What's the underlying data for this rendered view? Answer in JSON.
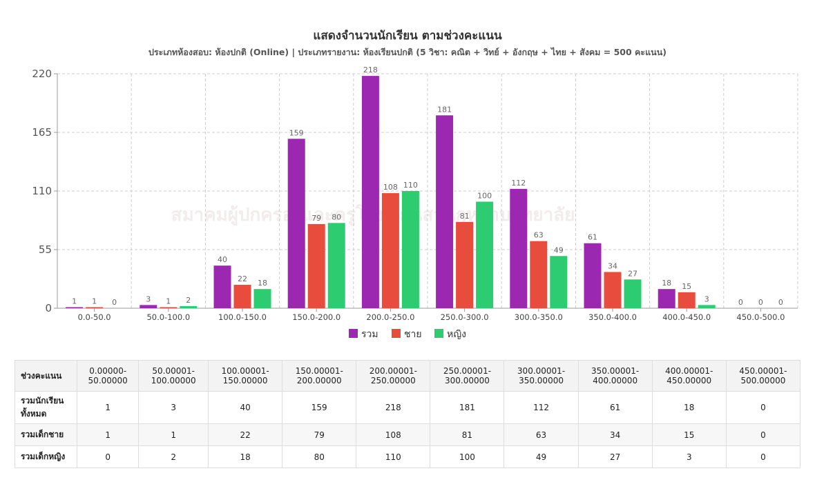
{
  "chart_data": {
    "type": "bar",
    "title": "แสดงจำนวนนักเรียน ตามช่วงคะแนน",
    "subtitle": "ประเภทห้องสอบ: ห้องปกติ (Online) | ประเภทรายงาน: ห้องเรียนปกติ (5 วิชา: คณิต + วิทย์ + อังกฤษ + ไทย + สังคม = 500 คะแนน)",
    "categories": [
      "0.0-50.0",
      "50.0-100.0",
      "100.0-150.0",
      "150.0-200.0",
      "200.0-250.0",
      "250.0-300.0",
      "300.0-350.0",
      "350.0-400.0",
      "400.0-450.0",
      "450.0-500.0"
    ],
    "series": [
      {
        "name": "รวม",
        "color": "#9c27b0",
        "values": [
          1,
          3,
          40,
          159,
          218,
          181,
          112,
          61,
          18,
          0
        ]
      },
      {
        "name": "ชาย",
        "color": "#e74c3c",
        "values": [
          1,
          1,
          22,
          79,
          108,
          81,
          63,
          34,
          15,
          0
        ]
      },
      {
        "name": "หญิง",
        "color": "#2ecc71",
        "values": [
          0,
          2,
          18,
          80,
          110,
          100,
          49,
          27,
          3,
          0
        ]
      }
    ],
    "yticks": [
      0,
      55,
      110,
      165,
      220
    ],
    "ylim": [
      0,
      220
    ],
    "grid": true,
    "legend": "bottom-center",
    "watermark": "สมาคมผู้ปกครองและครูโรงเรียนสวนกุหลาบวิทยาลัย"
  },
  "table": {
    "header_label": "ช่วงคะแนน",
    "ranges": [
      {
        "from": "0.00000-",
        "to": "50.00000"
      },
      {
        "from": "50.00001-",
        "to": "100.00000"
      },
      {
        "from": "100.00001-",
        "to": "150.00000"
      },
      {
        "from": "150.00001-",
        "to": "200.00000"
      },
      {
        "from": "200.00001-",
        "to": "250.00000"
      },
      {
        "from": "250.00001-",
        "to": "300.00000"
      },
      {
        "from": "300.00001-",
        "to": "350.00000"
      },
      {
        "from": "350.00001-",
        "to": "400.00000"
      },
      {
        "from": "400.00001-",
        "to": "450.00000"
      },
      {
        "from": "450.00001-",
        "to": "500.00000"
      }
    ],
    "rows": [
      {
        "label_line1": "รวมนักเรียน",
        "label_line2": "ทั้งหมด",
        "values": [
          "1",
          "3",
          "40",
          "159",
          "218",
          "181",
          "112",
          "61",
          "18",
          "0"
        ]
      },
      {
        "label_line1": "รวมเด็กชาย",
        "label_line2": "",
        "values": [
          "1",
          "1",
          "22",
          "79",
          "108",
          "81",
          "63",
          "34",
          "15",
          "0"
        ]
      },
      {
        "label_line1": "รวมเด็กหญิง",
        "label_line2": "",
        "values": [
          "0",
          "2",
          "18",
          "80",
          "110",
          "100",
          "49",
          "27",
          "3",
          "0"
        ]
      }
    ]
  }
}
